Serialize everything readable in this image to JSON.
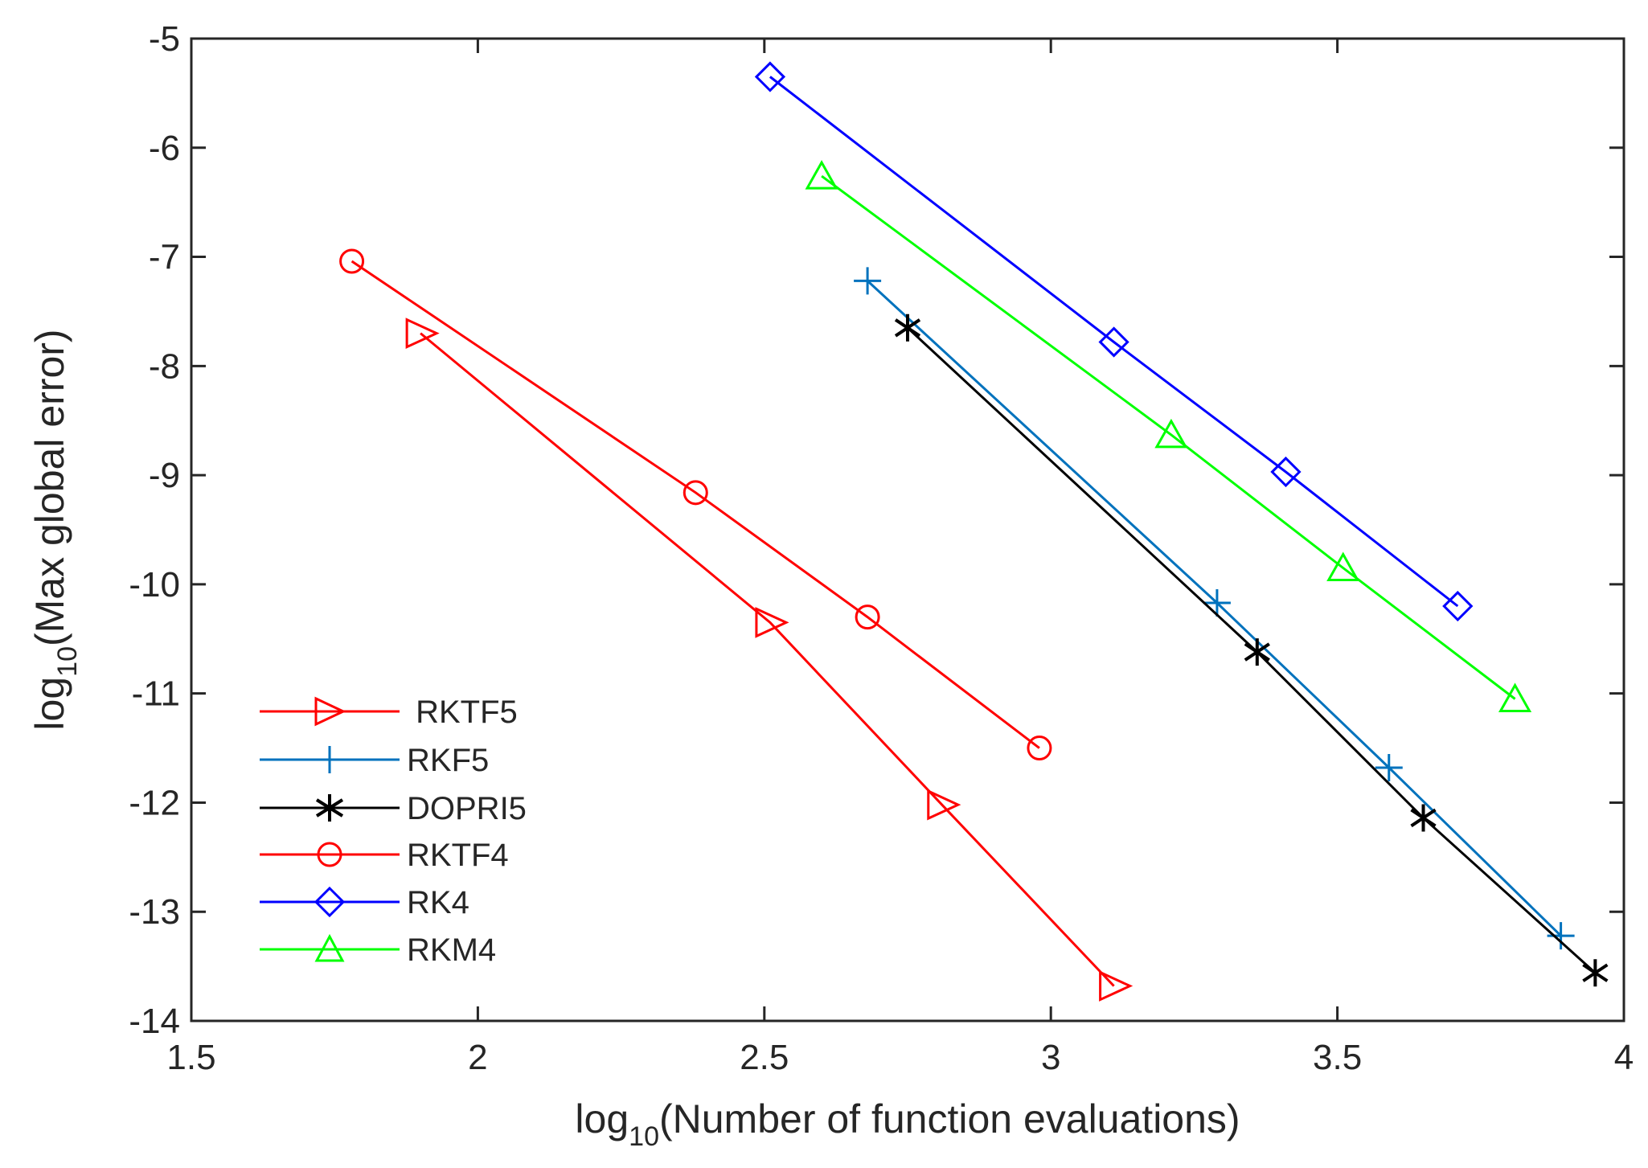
{
  "chart_data": {
    "type": "line",
    "xlabel": {
      "pre": "log",
      "sub": "10",
      "post": "(Number of function evaluations)"
    },
    "ylabel": {
      "pre": "log",
      "sub": "10",
      "post": "(Max global error)"
    },
    "xlim": [
      1.5,
      4
    ],
    "ylim": [
      -14,
      -5
    ],
    "xticks": [
      1.5,
      2,
      2.5,
      3,
      3.5,
      4
    ],
    "xtick_labels": [
      "1.5",
      "2",
      "2.5",
      "3",
      "3.5",
      "4"
    ],
    "yticks": [
      -5,
      -6,
      -7,
      -8,
      -9,
      -10,
      -11,
      -12,
      -13,
      -14
    ],
    "ytick_labels": [
      "-5",
      "-6",
      "-7",
      "-8",
      "-9",
      "-10",
      "-11",
      "-12",
      "-13",
      "-14"
    ],
    "grid": false,
    "legend_position": "bottom-left",
    "series": [
      {
        "name": " RKTF5",
        "color": "#ff0000",
        "marker": "triangle-right",
        "x": [
          1.9,
          2.51,
          2.81,
          3.11
        ],
        "y": [
          -7.7,
          -10.35,
          -12.02,
          -13.68
        ]
      },
      {
        "name": "RKF5",
        "color": "#0072bd",
        "marker": "plus",
        "x": [
          2.68,
          3.29,
          3.59,
          3.89
        ],
        "y": [
          -7.22,
          -10.17,
          -11.68,
          -13.22
        ]
      },
      {
        "name": "DOPRI5",
        "color": "#000000",
        "marker": "asterisk",
        "x": [
          2.75,
          3.36,
          3.65,
          3.95
        ],
        "y": [
          -7.65,
          -10.62,
          -12.14,
          -13.56
        ]
      },
      {
        "name": "RKTF4",
        "color": "#ff0000",
        "marker": "circle",
        "x": [
          1.78,
          2.38,
          2.68,
          2.98
        ],
        "y": [
          -7.04,
          -9.16,
          -10.3,
          -11.5
        ]
      },
      {
        "name": "RK4",
        "color": "#0000ff",
        "marker": "diamond",
        "x": [
          2.51,
          3.11,
          3.41,
          3.71
        ],
        "y": [
          -5.35,
          -7.78,
          -8.97,
          -10.2
        ]
      },
      {
        "name": "RKM4",
        "color": "#00ff00",
        "marker": "triangle-up",
        "x": [
          2.6,
          3.21,
          3.51,
          3.81
        ],
        "y": [
          -6.26,
          -8.63,
          -9.85,
          -11.05
        ]
      }
    ]
  }
}
